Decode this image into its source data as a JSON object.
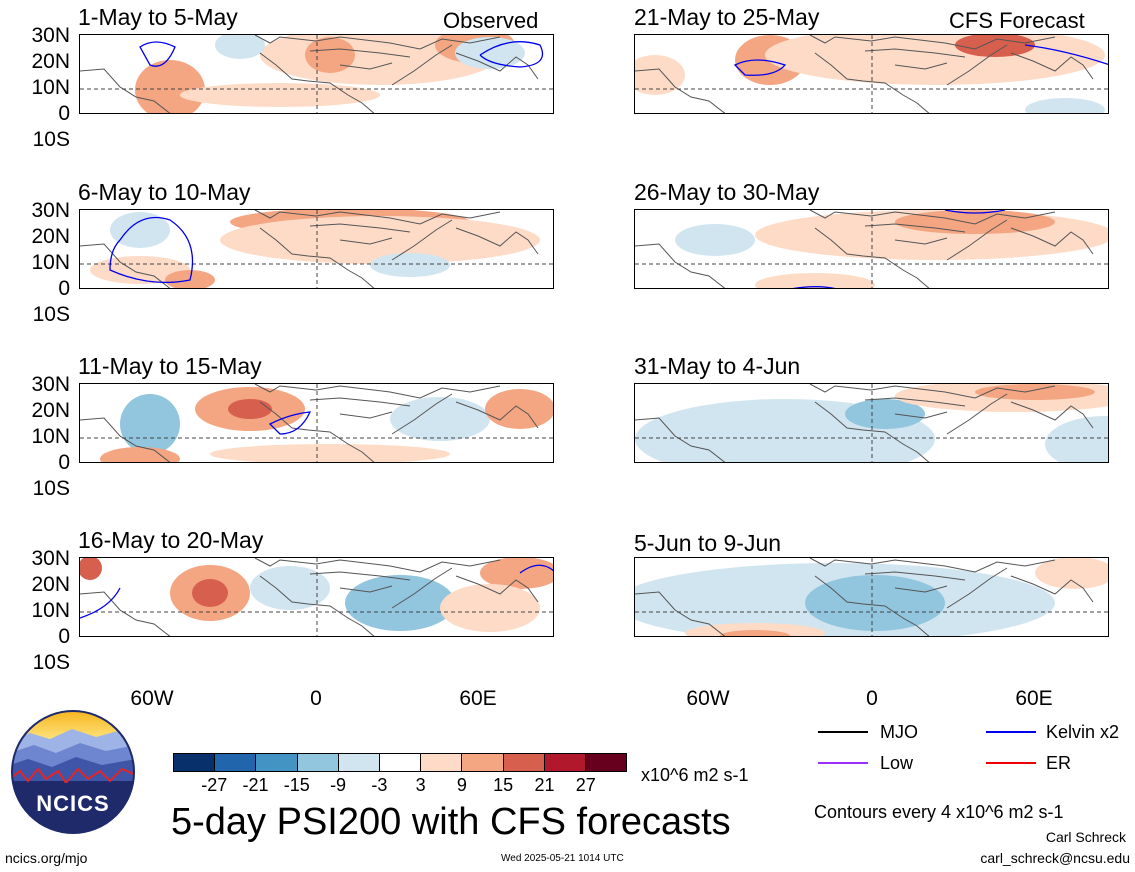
{
  "observed_label": "Observed",
  "forecast_label": "CFS Forecast",
  "lat_labels": [
    "30N",
    "20N",
    "10N",
    "0",
    "10S"
  ],
  "lon_labels": [
    "60W",
    "0",
    "60E"
  ],
  "panels_left": [
    {
      "title": "1-May to 5-May"
    },
    {
      "title": "6-May to 10-May"
    },
    {
      "title": "11-May to 15-May"
    },
    {
      "title": "16-May to 20-May"
    }
  ],
  "panels_right": [
    {
      "title": "21-May to 25-May"
    },
    {
      "title": "26-May to 30-May"
    },
    {
      "title": "31-May to 4-Jun"
    },
    {
      "title": "5-Jun to 9-Jun"
    }
  ],
  "legend": {
    "items": [
      {
        "label": "MJO",
        "color": "#000000"
      },
      {
        "label": "Kelvin x2",
        "color": "#0000ee"
      },
      {
        "label": "Low",
        "color": "#9b30ff"
      },
      {
        "label": "ER",
        "color": "#ee0000"
      }
    ],
    "contour_note": "Contours every 4 x10^6 m2 s-1"
  },
  "colorbar": {
    "ticks": [
      "-27",
      "-21",
      "-15",
      "-9",
      "-3",
      "3",
      "9",
      "15",
      "21",
      "27"
    ],
    "units": "x10^6 m2 s-1",
    "colors": [
      "#08306b",
      "#2166ac",
      "#4393c3",
      "#92c5de",
      "#d1e5f0",
      "#ffffff",
      "#fddbc7",
      "#f4a582",
      "#d6604d",
      "#b2182b",
      "#67001f"
    ]
  },
  "main_title": "5-day PSI200 with CFS forecasts",
  "logo_text": "NCICS",
  "footer": {
    "site": "ncics.org/mjo",
    "timestamp": "Wed 2025-05-21 1014 UTC",
    "author": "Carl Schreck",
    "email": "carl_schreck@ncsu.edu"
  }
}
